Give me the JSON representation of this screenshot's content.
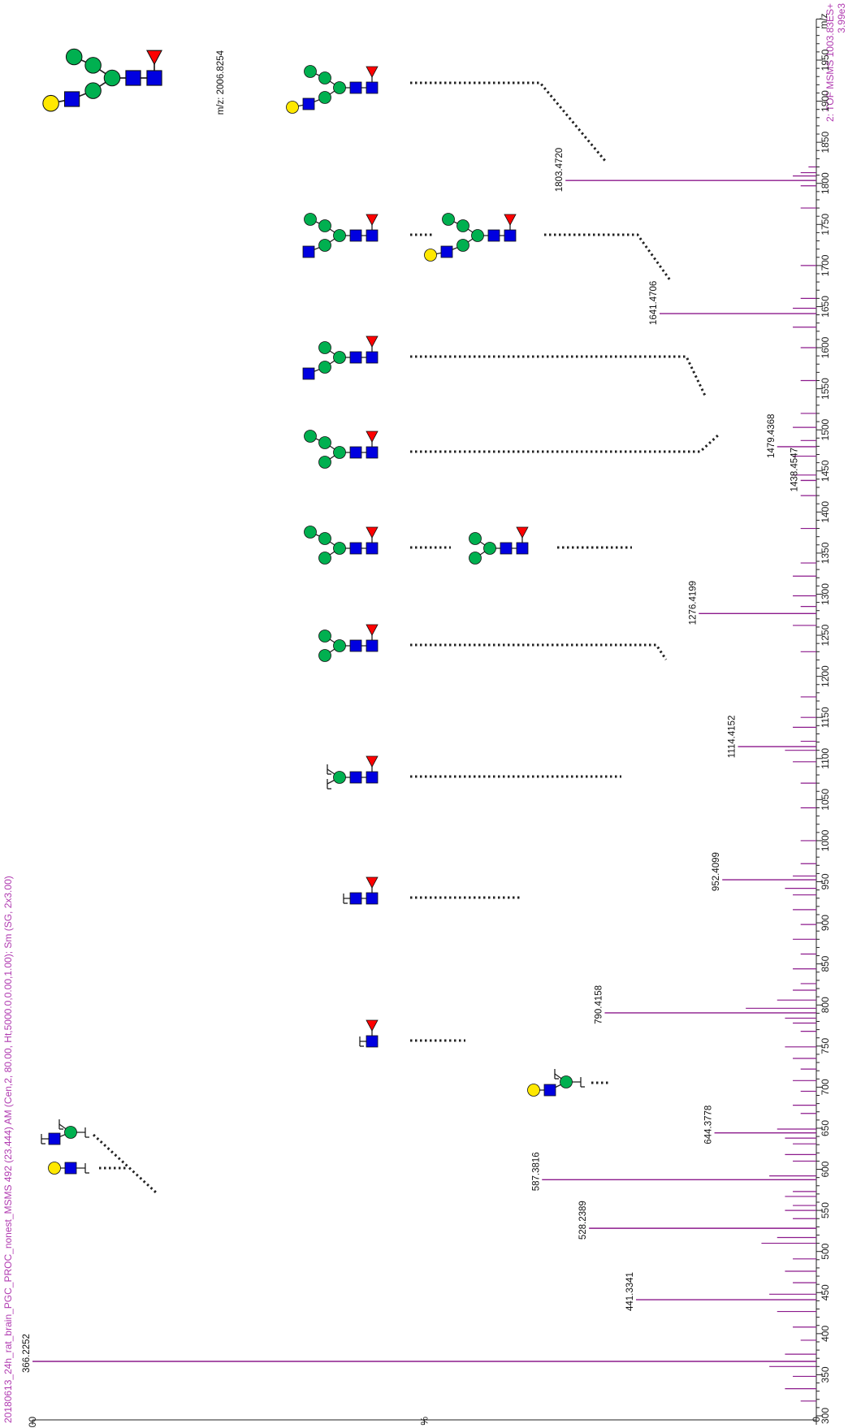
{
  "header": {
    "experiment": "2: TOF MSMS 1003.83ES+",
    "intensity": "3.99e3",
    "file_info": "20180613_24h_rat_brain_PGC_PROC_nonest_MSMS 492 (23.444) AM (Cen,2, 80.00, Ht,5000.0,0.00,1.00); Sm (SG, 2x3.00)"
  },
  "precursor": {
    "label": "m/z: 2006.8254"
  },
  "chart_data": {
    "type": "bar",
    "title": "",
    "x_axis_title": "m/z",
    "y_axis_title": "%",
    "x_range": [
      300,
      2000
    ],
    "y_range": [
      0,
      100
    ],
    "x_ticks": [
      300,
      350,
      400,
      450,
      500,
      550,
      600,
      650,
      700,
      750,
      800,
      850,
      900,
      950,
      1000,
      1050,
      1100,
      1150,
      1200,
      1250,
      1300,
      1350,
      1400,
      1450,
      1500,
      1550,
      1600,
      1650,
      1700,
      1750,
      1800,
      1850,
      1900,
      1950
    ],
    "y_ticks": [
      {
        "value": 0,
        "label": "0"
      },
      {
        "value": 50,
        "label": "%"
      },
      {
        "value": 100,
        "label": "100"
      }
    ],
    "labeled_peaks": [
      {
        "mz": 366.2252,
        "intensity": 100,
        "label": "366.2252"
      },
      {
        "mz": 441.3341,
        "intensity": 23,
        "label": "441.3341"
      },
      {
        "mz": 528.2389,
        "intensity": 29,
        "label": "528.2389"
      },
      {
        "mz": 587.3816,
        "intensity": 35,
        "label": "587.3816"
      },
      {
        "mz": 644.3778,
        "intensity": 13,
        "label": "644.3778"
      },
      {
        "mz": 790.4158,
        "intensity": 27,
        "label": "790.4158"
      },
      {
        "mz": 952.4099,
        "intensity": 12,
        "label": "952.4099"
      },
      {
        "mz": 1114.4152,
        "intensity": 10,
        "label": "1114.4152"
      },
      {
        "mz": 1276.4199,
        "intensity": 15,
        "label": "1276.4199"
      },
      {
        "mz": 1438.4547,
        "intensity": 2,
        "label": "1438.4547"
      },
      {
        "mz": 1479.4368,
        "intensity": 5,
        "label": "1479.4368"
      },
      {
        "mz": 1641.4706,
        "intensity": 20,
        "label": "1641.4706"
      },
      {
        "mz": 1803.472,
        "intensity": 32,
        "label": "1803.4720"
      }
    ],
    "minor_peaks": [
      [
        318,
        2
      ],
      [
        333,
        4
      ],
      [
        348,
        3
      ],
      [
        360,
        6
      ],
      [
        375,
        4
      ],
      [
        392,
        2
      ],
      [
        408,
        3
      ],
      [
        427,
        5
      ],
      [
        448,
        6
      ],
      [
        462,
        3
      ],
      [
        476,
        4
      ],
      [
        491,
        3
      ],
      [
        510,
        7
      ],
      [
        517,
        5
      ],
      [
        540,
        3
      ],
      [
        550,
        4
      ],
      [
        556,
        3
      ],
      [
        567,
        4
      ],
      [
        573,
        3
      ],
      [
        592,
        6
      ],
      [
        610,
        3
      ],
      [
        618,
        4
      ],
      [
        631,
        3
      ],
      [
        638,
        4
      ],
      [
        649,
        5
      ],
      [
        668,
        2
      ],
      [
        678,
        3
      ],
      [
        695,
        2
      ],
      [
        708,
        3
      ],
      [
        722,
        2
      ],
      [
        735,
        3
      ],
      [
        749,
        4
      ],
      [
        768,
        2
      ],
      [
        778,
        3
      ],
      [
        784,
        4
      ],
      [
        796,
        9
      ],
      [
        806,
        5
      ],
      [
        818,
        3
      ],
      [
        826,
        2
      ],
      [
        844,
        3
      ],
      [
        862,
        2
      ],
      [
        880,
        3
      ],
      [
        898,
        2
      ],
      [
        916,
        3
      ],
      [
        934,
        3
      ],
      [
        942,
        4
      ],
      [
        957,
        3
      ],
      [
        972,
        2
      ],
      [
        1000,
        2
      ],
      [
        1040,
        2
      ],
      [
        1070,
        2
      ],
      [
        1096,
        3
      ],
      [
        1110,
        4
      ],
      [
        1121,
        2
      ],
      [
        1138,
        3
      ],
      [
        1150,
        2
      ],
      [
        1175,
        2
      ],
      [
        1230,
        2
      ],
      [
        1262,
        3
      ],
      [
        1285,
        2
      ],
      [
        1298,
        3
      ],
      [
        1322,
        3
      ],
      [
        1338,
        2
      ],
      [
        1380,
        2
      ],
      [
        1420,
        2
      ],
      [
        1445,
        3
      ],
      [
        1468,
        3
      ],
      [
        1487,
        2
      ],
      [
        1503,
        3
      ],
      [
        1520,
        2
      ],
      [
        1560,
        2
      ],
      [
        1600,
        2
      ],
      [
        1625,
        3
      ],
      [
        1648,
        3
      ],
      [
        1660,
        2
      ],
      [
        1700,
        2
      ],
      [
        1770,
        2
      ],
      [
        1797,
        2
      ],
      [
        1809,
        3
      ],
      [
        1813,
        2
      ],
      [
        1820,
        1
      ]
    ]
  },
  "colors": {
    "peak": "#8c1a8c",
    "header_text": "#b03ab0",
    "mannose": "#00b050",
    "glcnac": "#0000e0",
    "galactose": "#ffe800",
    "fucose": "#ff0000",
    "link": "#222222"
  }
}
